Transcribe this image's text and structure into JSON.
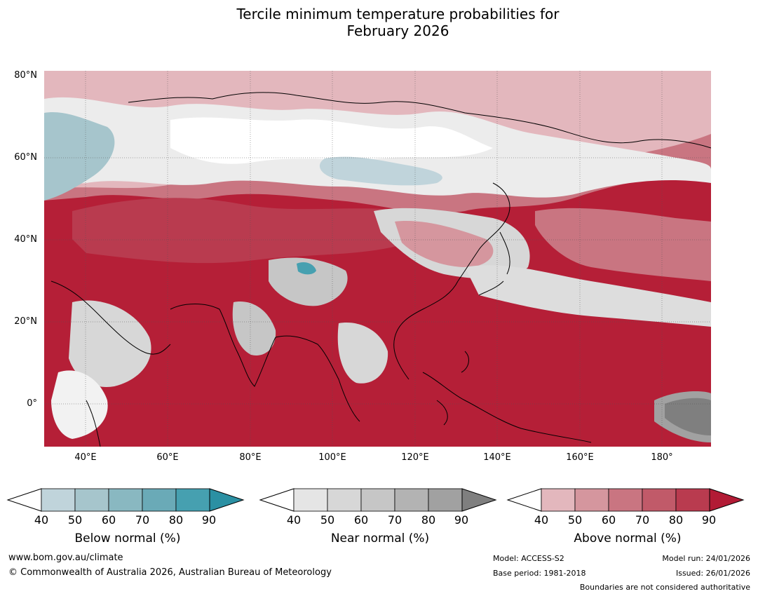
{
  "title_line1": "Tercile minimum temperature probabilities for",
  "title_line2": "February 2026",
  "map": {
    "lat_labels": [
      "80°N",
      "60°N",
      "40°N",
      "20°N",
      "0°"
    ],
    "lon_labels": [
      "40°E",
      "60°E",
      "80°E",
      "100°E",
      "120°E",
      "140°E",
      "160°E",
      "180°"
    ],
    "extent": {
      "lon_min": 30,
      "lon_max": 192,
      "lat_min": -10,
      "lat_max": 80
    }
  },
  "legends": [
    {
      "title": "Below normal (%)",
      "ticks": [
        "40",
        "50",
        "60",
        "70",
        "80",
        "90"
      ],
      "colors": [
        "#ffffff",
        "#c0d4db",
        "#a6c5cc",
        "#89b8c1",
        "#6aaab7",
        "#46a0b0",
        "#2b90a3"
      ]
    },
    {
      "title": "Near normal (%)",
      "ticks": [
        "40",
        "50",
        "60",
        "70",
        "80",
        "90"
      ],
      "colors": [
        "#ffffff",
        "#e5e5e5",
        "#d7d7d7",
        "#c6c6c6",
        "#b3b3b3",
        "#a1a1a1",
        "#7f7f7f"
      ]
    },
    {
      "title": "Above normal (%)",
      "ticks": [
        "40",
        "50",
        "60",
        "70",
        "80",
        "90"
      ],
      "colors": [
        "#ffffff",
        "#e3b7bd",
        "#d5969e",
        "#c97581",
        "#c15a69",
        "#b93b4f",
        "#b21b35"
      ]
    }
  ],
  "footer": {
    "website": "www.bom.gov.au/climate",
    "copyright": "© Commonwealth of Australia 2026, Australian Bureau of Meteorology",
    "model": "Model: ACCESS-S2",
    "base_period": "Base period: 1981-2018",
    "model_run": "Model run: 24/01/2026",
    "issued": "Issued: 26/01/2026",
    "boundaries": "Boundaries are not considered authoritative"
  }
}
